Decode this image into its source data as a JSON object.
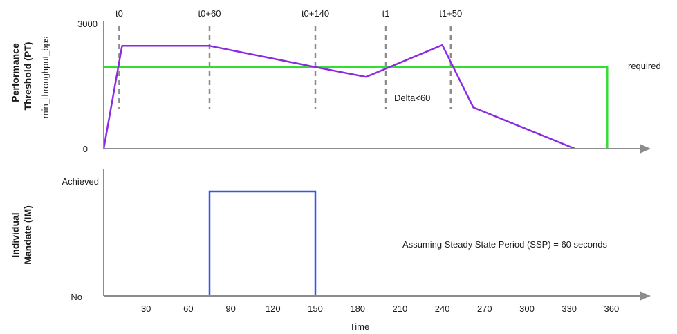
{
  "chart_data": [
    {
      "type": "line",
      "ylabel_lines": [
        "Performance",
        "Threshold (PT)"
      ],
      "ylabel_sub": "min_throughput_bps",
      "y_ticks": [
        "3000",
        "0"
      ],
      "ylim": [
        0,
        3000
      ],
      "xlim": [
        0,
        380
      ],
      "grid": false,
      "markers": [
        {
          "label": "t0",
          "x": 11
        },
        {
          "label": "t0+60",
          "x": 75
        },
        {
          "label": "t0+140",
          "x": 150
        },
        {
          "label": "t1",
          "x": 200
        },
        {
          "label": "t1+50",
          "x": 246
        }
      ],
      "series": [
        {
          "name": "",
          "color": "#8a2be2",
          "points": [
            [
              0,
              0
            ],
            [
              13,
              2520
            ],
            [
              75,
              2520
            ],
            [
              150,
              2000
            ],
            [
              186,
              1760
            ],
            [
              240,
              2540
            ],
            [
              262,
              1010
            ],
            [
              334,
              0
            ]
          ]
        },
        {
          "name": "required",
          "color": "#33dd33",
          "points": [
            [
              0,
              2000
            ],
            [
              357,
              2000
            ],
            [
              357,
              0
            ]
          ]
        }
      ],
      "annotations": [
        {
          "text": "Delta<60",
          "x": 222,
          "y": 1200
        },
        {
          "text": "required",
          "x": 377,
          "y": 2000
        }
      ]
    },
    {
      "type": "line",
      "ylabel_lines": [
        "Individual",
        "Mandate (IM)"
      ],
      "y_ticks": [
        "Achieved",
        "No"
      ],
      "xlabel": "Time",
      "x_ticks": [
        30,
        60,
        90,
        120,
        150,
        180,
        210,
        240,
        270,
        300,
        330,
        360
      ],
      "xlim": [
        0,
        380
      ],
      "grid": false,
      "series": [
        {
          "name": "",
          "color": "#3355ee",
          "points": [
            [
              75,
              "No"
            ],
            [
              75,
              "Achieved"
            ],
            [
              150,
              "Achieved"
            ],
            [
              150,
              "No"
            ]
          ]
        }
      ],
      "annotations": [
        {
          "text": "Assuming Steady State Period (SSP) = 60 seconds"
        }
      ]
    }
  ]
}
